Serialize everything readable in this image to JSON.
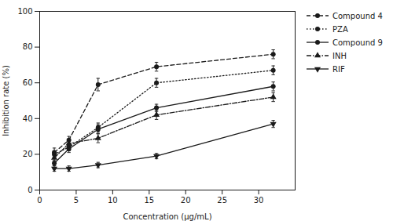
{
  "chart_data": {
    "type": "line",
    "xlabel": "Concentration (μg/mL)",
    "ylabel": "Inhibition rate (%)",
    "x": [
      2,
      4,
      8,
      16,
      32
    ],
    "series": [
      {
        "name": "Compound 4",
        "values": [
          21,
          28,
          59,
          69,
          76
        ],
        "yerr": [
          2.5,
          2.0,
          3.5,
          2.5,
          2.5
        ],
        "marker": "circle",
        "line_style": "dashed"
      },
      {
        "name": "PZA",
        "values": [
          20,
          24,
          35,
          60,
          67
        ],
        "yerr": [
          2.0,
          2.0,
          2.5,
          2.5,
          2.5
        ],
        "marker": "circle",
        "line_style": "dotted"
      },
      {
        "name": "Compound 9",
        "values": [
          15,
          23,
          34,
          46,
          58
        ],
        "yerr": [
          1.5,
          2.0,
          2.5,
          2.0,
          2.5
        ],
        "marker": "circle",
        "line_style": "solid"
      },
      {
        "name": "INH",
        "values": [
          18,
          26,
          29,
          42,
          52
        ],
        "yerr": [
          2.0,
          2.0,
          2.5,
          2.5,
          2.5
        ],
        "marker": "triangle-up",
        "line_style": "dashdot"
      },
      {
        "name": "RIF",
        "values": [
          12,
          12,
          14,
          19,
          37
        ],
        "yerr": [
          1.5,
          1.5,
          1.5,
          1.5,
          2.0
        ],
        "marker": "triangle-down",
        "line_style": "solid"
      }
    ],
    "xlim": [
      0,
      35
    ],
    "ylim": [
      0,
      100
    ],
    "xticks": [
      0,
      5,
      10,
      15,
      20,
      25,
      30
    ],
    "yticks": [
      0,
      20,
      40,
      60,
      80,
      100
    ],
    "color": "#1a1a1a",
    "grid": false,
    "legend": "upper right"
  }
}
